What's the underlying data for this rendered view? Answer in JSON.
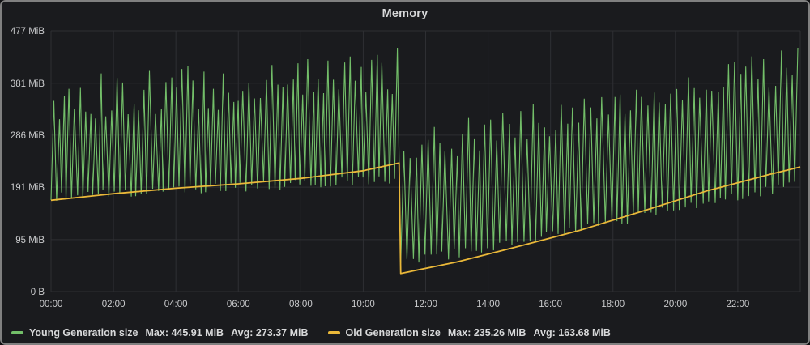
{
  "chart_data": {
    "type": "line",
    "title": "Memory",
    "grid": true,
    "legend_position": "bottom-left",
    "x_axis": {
      "range_hours": [
        0,
        24
      ],
      "tick_hours": [
        0,
        2,
        4,
        6,
        8,
        10,
        12,
        14,
        16,
        18,
        20,
        22
      ],
      "tick_labels": [
        "00:00",
        "02:00",
        "04:00",
        "06:00",
        "08:00",
        "10:00",
        "12:00",
        "14:00",
        "16:00",
        "18:00",
        "20:00",
        "22:00"
      ]
    },
    "y_axis": {
      "range_mib": [
        0,
        477
      ],
      "tick_values_mib": [
        0,
        95,
        191,
        286,
        381,
        477
      ],
      "tick_labels": [
        "0 B",
        "95 MiB",
        "191 MiB",
        "286 MiB",
        "381 MiB",
        "477 MiB"
      ]
    },
    "style": {
      "background": "#1a1b1e",
      "grid_color": "#2e2f33",
      "axis_text_color": "#c9cacc",
      "title_color": "#d8d9da"
    },
    "series": [
      {
        "name": "Young Generation size",
        "color": "#73bf69",
        "shape": "gc-sawtooth-envelope",
        "max_label": "Max: 445.91 MiB",
        "avg_label": "Avg: 273.37 MiB",
        "max_mib": 445.91,
        "avg_mib": 273.37,
        "seed": 13,
        "segments": [
          {
            "t_start": 0,
            "t_end": 11.15,
            "trough_start": 172,
            "trough_end": 207,
            "trough_jitter": 9,
            "peak_start": 352,
            "peak_end": 398,
            "peak_jitter": 42,
            "period_min": 10,
            "final_peak": 445.91
          },
          {
            "t_start": 11.2,
            "t_end": 24,
            "trough_start": 50,
            "trough_end": 196,
            "trough_jitter": 9,
            "peak_start": 258,
            "peak_end": 418,
            "peak_jitter": 34,
            "period_min": 11
          }
        ]
      },
      {
        "name": "Old Generation size",
        "color": "#eab839",
        "shape": "line",
        "max_label": "Max: 235.26 MiB",
        "avg_label": "Avg: 163.68 MiB",
        "max_mib": 235.26,
        "avg_mib": 163.68,
        "points": [
          [
            0,
            167
          ],
          [
            2,
            179
          ],
          [
            4,
            189
          ],
          [
            6,
            197
          ],
          [
            8,
            207
          ],
          [
            10,
            221
          ],
          [
            11.15,
            235.26
          ],
          [
            11.2,
            33
          ],
          [
            13,
            54
          ],
          [
            15,
            83
          ],
          [
            17,
            113
          ],
          [
            19,
            148
          ],
          [
            21,
            184
          ],
          [
            23,
            214
          ],
          [
            24,
            228
          ]
        ]
      }
    ]
  }
}
